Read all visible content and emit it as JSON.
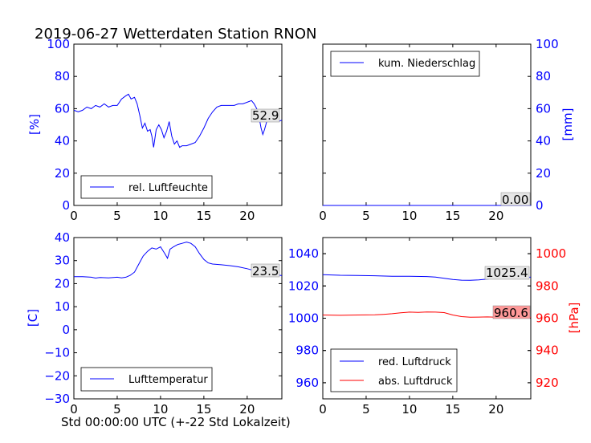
{
  "figure": {
    "title": "2019-06-27 Wetterdaten Station RNON",
    "xlabel": "Std 00:00:00 UTC (+-22 Std Lokalzeit)"
  },
  "colors": {
    "blue": "#0000ff",
    "red": "#ff0000",
    "red_box": "#ff9999",
    "grey_box": "#e6e6e6"
  },
  "chart_data": [
    {
      "type": "line",
      "panel": "humidity",
      "xlim": [
        0,
        24
      ],
      "ylim": [
        0,
        100
      ],
      "xticks": [
        0,
        5,
        10,
        15,
        20
      ],
      "yticks": [
        0,
        20,
        40,
        60,
        80,
        100
      ],
      "ylabel": "[%]",
      "grid": false,
      "legend": "lower-left",
      "last_value_label": "52.9",
      "series": [
        {
          "name": "rel. Luftfeuchte",
          "color": "#0000ff",
          "points": [
            [
              0,
              59
            ],
            [
              0.5,
              58
            ],
            [
              1,
              59
            ],
            [
              1.5,
              61
            ],
            [
              2,
              60
            ],
            [
              2.5,
              62
            ],
            [
              3,
              61
            ],
            [
              3.5,
              63
            ],
            [
              4,
              61
            ],
            [
              4.5,
              62
            ],
            [
              5,
              62
            ],
            [
              5.5,
              66
            ],
            [
              6,
              68
            ],
            [
              6.3,
              69
            ],
            [
              6.6,
              66
            ],
            [
              7,
              67
            ],
            [
              7.3,
              63
            ],
            [
              7.6,
              56
            ],
            [
              7.9,
              48
            ],
            [
              8.2,
              51
            ],
            [
              8.5,
              46
            ],
            [
              8.8,
              47
            ],
            [
              9,
              43
            ],
            [
              9.2,
              36
            ],
            [
              9.5,
              47
            ],
            [
              9.8,
              50
            ],
            [
              10.1,
              47
            ],
            [
              10.4,
              42
            ],
            [
              10.7,
              46
            ],
            [
              11,
              52
            ],
            [
              11.3,
              43
            ],
            [
              11.6,
              38
            ],
            [
              11.9,
              40
            ],
            [
              12.2,
              36
            ],
            [
              12.5,
              37
            ],
            [
              13,
              37
            ],
            [
              13.5,
              38
            ],
            [
              14,
              39
            ],
            [
              14.5,
              43
            ],
            [
              15,
              48
            ],
            [
              15.5,
              54
            ],
            [
              16,
              58
            ],
            [
              16.5,
              61
            ],
            [
              17,
              62
            ],
            [
              17.5,
              62
            ],
            [
              18,
              62
            ],
            [
              18.5,
              62
            ],
            [
              19,
              63
            ],
            [
              19.5,
              63
            ],
            [
              20,
              64
            ],
            [
              20.5,
              65
            ],
            [
              20.8,
              63
            ],
            [
              21.1,
              60
            ],
            [
              21.4,
              54
            ],
            [
              21.6,
              48
            ],
            [
              21.8,
              44
            ],
            [
              22,
              47
            ],
            [
              22.3,
              53
            ],
            [
              22.7,
              55
            ],
            [
              23.2,
              53
            ],
            [
              23.6,
              52
            ],
            [
              24,
              52.9
            ]
          ]
        }
      ]
    },
    {
      "type": "line",
      "panel": "precipitation",
      "xlim": [
        0,
        24
      ],
      "ylim": [
        0,
        100
      ],
      "xticks": [
        0,
        5,
        10,
        15,
        20
      ],
      "yticks": [
        0,
        20,
        40,
        60,
        80,
        100
      ],
      "ylabel": "[mm]",
      "grid": false,
      "legend": "upper-left",
      "last_value_label": "0.00",
      "series": [
        {
          "name": "kum. Niederschlag",
          "color": "#0000ff",
          "points": [
            [
              0,
              0
            ],
            [
              24,
              0
            ]
          ]
        }
      ]
    },
    {
      "type": "line",
      "panel": "temperature",
      "xlim": [
        0,
        24
      ],
      "ylim": [
        -30,
        40
      ],
      "xticks": [
        0,
        5,
        10,
        15,
        20
      ],
      "yticks": [
        -30,
        -20,
        -10,
        0,
        10,
        20,
        30,
        40
      ],
      "ylabel": "[C]",
      "grid": false,
      "legend": "lower-left",
      "last_value_label": "23.5",
      "series": [
        {
          "name": "Lufttemperatur",
          "color": "#0000ff",
          "points": [
            [
              0,
              23
            ],
            [
              1,
              23
            ],
            [
              2,
              22.8
            ],
            [
              2.5,
              22.4
            ],
            [
              3,
              22.7
            ],
            [
              4,
              22.5
            ],
            [
              5,
              22.8
            ],
            [
              5.5,
              22.5
            ],
            [
              6,
              22.8
            ],
            [
              6.5,
              23.6
            ],
            [
              7,
              25
            ],
            [
              7.5,
              28.5
            ],
            [
              8,
              32
            ],
            [
              8.5,
              34
            ],
            [
              9,
              35.5
            ],
            [
              9.5,
              35
            ],
            [
              10,
              36
            ],
            [
              10.5,
              33
            ],
            [
              10.8,
              31
            ],
            [
              11.1,
              35
            ],
            [
              11.5,
              36
            ],
            [
              12,
              37
            ],
            [
              12.5,
              37.5
            ],
            [
              13,
              38
            ],
            [
              13.5,
              37.5
            ],
            [
              14,
              36
            ],
            [
              14.5,
              33
            ],
            [
              15,
              30.5
            ],
            [
              15.5,
              29
            ],
            [
              16,
              28.5
            ],
            [
              17,
              28.2
            ],
            [
              18,
              27.8
            ],
            [
              19,
              27.3
            ],
            [
              20,
              26.5
            ],
            [
              21,
              25.5
            ],
            [
              22,
              24.8
            ],
            [
              23,
              24
            ],
            [
              24,
              23.5
            ]
          ]
        }
      ]
    },
    {
      "type": "line",
      "panel": "pressure",
      "xlim": [
        0,
        24
      ],
      "ylim": [
        950,
        1050
      ],
      "yticks": [
        960,
        980,
        1000,
        1020,
        1040
      ],
      "y2lim": [
        910,
        1010
      ],
      "y2ticks": [
        920,
        940,
        960,
        980,
        1000
      ],
      "xticks": [
        0,
        5,
        10,
        15,
        20
      ],
      "y2label": "[hPa]",
      "grid": false,
      "legend": "lower-left",
      "series": [
        {
          "name": "red. Luftdruck",
          "color": "#0000ff",
          "axis": "left",
          "last_value_label": "1025.4",
          "points": [
            [
              0,
              1027
            ],
            [
              2,
              1026.6
            ],
            [
              4,
              1026.5
            ],
            [
              6,
              1026.3
            ],
            [
              8,
              1026
            ],
            [
              10,
              1026
            ],
            [
              12,
              1025.8
            ],
            [
              13,
              1025.5
            ],
            [
              14,
              1024.8
            ],
            [
              15,
              1024
            ],
            [
              16,
              1023.6
            ],
            [
              17,
              1023.5
            ],
            [
              18,
              1023.8
            ],
            [
              19,
              1024.3
            ],
            [
              20,
              1024.8
            ],
            [
              21,
              1025
            ],
            [
              22,
              1025.3
            ],
            [
              23,
              1025.4
            ],
            [
              24,
              1025.4
            ]
          ]
        },
        {
          "name": "abs. Luftdruck",
          "color": "#ff0000",
          "axis": "right",
          "last_value_label": "960.6",
          "points": [
            [
              0,
              962
            ],
            [
              2,
              961.8
            ],
            [
              4,
              962
            ],
            [
              6,
              962.1
            ],
            [
              7,
              962.4
            ],
            [
              8,
              962.8
            ],
            [
              9,
              963.4
            ],
            [
              10,
              963.8
            ],
            [
              11,
              963.6
            ],
            [
              12,
              963.9
            ],
            [
              13,
              963.8
            ],
            [
              14,
              963.5
            ],
            [
              15,
              962
            ],
            [
              16,
              961
            ],
            [
              17,
              960.6
            ],
            [
              18,
              960.7
            ],
            [
              19,
              960.8
            ],
            [
              20,
              960.6
            ],
            [
              21,
              960.6
            ],
            [
              22,
              960.6
            ],
            [
              23,
              960.6
            ],
            [
              24,
              960.6
            ]
          ]
        }
      ]
    }
  ]
}
